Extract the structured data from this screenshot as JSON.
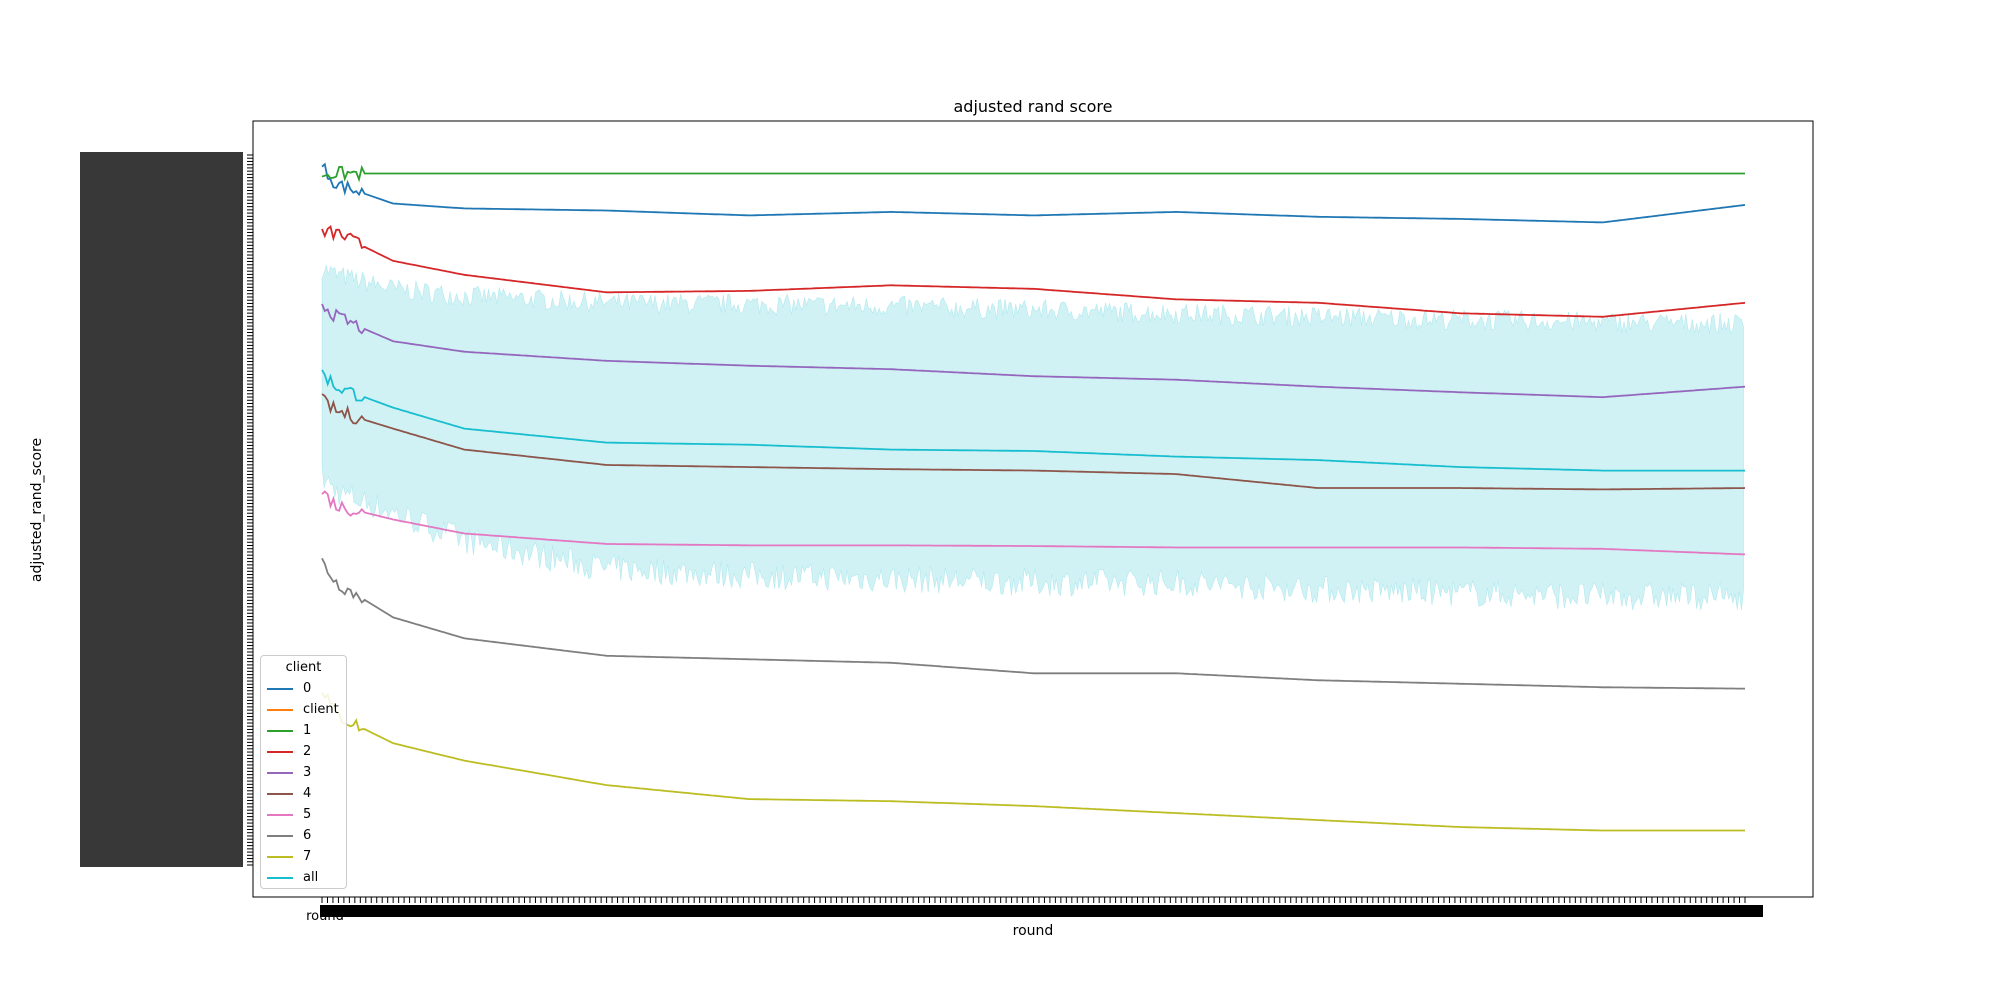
{
  "chart_data": {
    "type": "line",
    "title": "adjusted rand score",
    "xlabel": "round",
    "ylabel": "adjusted_rand_score",
    "x_first_tick_label": "round",
    "xlim": [
      0,
      1000
    ],
    "ylim": [
      0,
      1
    ],
    "grid": false,
    "legend": {
      "title": "client",
      "placement": "lower-left",
      "entries": [
        "0",
        "client",
        "1",
        "2",
        "3",
        "4",
        "5",
        "6",
        "7",
        "all"
      ]
    },
    "series": [
      {
        "name": "0",
        "color": "#1f77b4",
        "x": [
          0,
          10,
          50,
          100,
          200,
          300,
          400,
          500,
          600,
          700,
          800,
          900,
          1000
        ],
        "y": [
          0.995,
          0.97,
          0.942,
          0.935,
          0.932,
          0.925,
          0.93,
          0.925,
          0.93,
          0.923,
          0.92,
          0.915,
          0.94
        ]
      },
      {
        "name": "client",
        "color": "#ff7f0e",
        "x": [],
        "y": []
      },
      {
        "name": "1",
        "color": "#2ca02c",
        "x": [
          0,
          1000
        ],
        "y": [
          0.985,
          0.985
        ]
      },
      {
        "name": "2",
        "color": "#d62728",
        "x": [
          0,
          10,
          50,
          100,
          200,
          300,
          400,
          500,
          600,
          700,
          800,
          900,
          1000
        ],
        "y": [
          0.9,
          0.9,
          0.86,
          0.84,
          0.815,
          0.817,
          0.825,
          0.82,
          0.805,
          0.8,
          0.785,
          0.78,
          0.8
        ]
      },
      {
        "name": "3",
        "color": "#9467bd",
        "x": [
          0,
          10,
          50,
          100,
          200,
          300,
          400,
          500,
          600,
          700,
          800,
          900,
          1000
        ],
        "y": [
          0.8,
          0.78,
          0.745,
          0.73,
          0.717,
          0.71,
          0.705,
          0.695,
          0.69,
          0.68,
          0.672,
          0.665,
          0.68
        ]
      },
      {
        "name": "4",
        "color": "#8c564b",
        "x": [
          0,
          10,
          50,
          100,
          200,
          300,
          400,
          500,
          600,
          700,
          800,
          900,
          1000
        ],
        "y": [
          0.66,
          0.645,
          0.62,
          0.59,
          0.568,
          0.565,
          0.562,
          0.56,
          0.555,
          0.535,
          0.535,
          0.533,
          0.535
        ]
      },
      {
        "name": "5",
        "color": "#e377c2",
        "x": [
          0,
          10,
          50,
          100,
          200,
          300,
          400,
          500,
          600,
          700,
          800,
          900,
          1000
        ],
        "y": [
          0.53,
          0.51,
          0.49,
          0.47,
          0.455,
          0.453,
          0.453,
          0.452,
          0.45,
          0.45,
          0.45,
          0.448,
          0.44
        ]
      },
      {
        "name": "6",
        "color": "#7f7f7f",
        "x": [
          0,
          10,
          50,
          100,
          200,
          300,
          400,
          500,
          600,
          700,
          800,
          900,
          1000
        ],
        "y": [
          0.43,
          0.4,
          0.35,
          0.32,
          0.295,
          0.29,
          0.285,
          0.27,
          0.27,
          0.26,
          0.255,
          0.25,
          0.248
        ]
      },
      {
        "name": "7",
        "color": "#bcbd22",
        "x": [
          0,
          10,
          50,
          100,
          200,
          300,
          400,
          500,
          600,
          700,
          800,
          900,
          1000
        ],
        "y": [
          0.25,
          0.21,
          0.17,
          0.145,
          0.11,
          0.09,
          0.087,
          0.08,
          0.07,
          0.06,
          0.05,
          0.045,
          0.045
        ]
      },
      {
        "name": "all",
        "color": "#17becf",
        "x": [
          0,
          10,
          50,
          100,
          200,
          300,
          400,
          500,
          600,
          700,
          800,
          900,
          1000
        ],
        "y": [
          0.7,
          0.68,
          0.65,
          0.62,
          0.6,
          0.597,
          0.59,
          0.588,
          0.58,
          0.575,
          0.565,
          0.56,
          0.56
        ],
        "band_upper": [
          0.85,
          0.84,
          0.82,
          0.81,
          0.8,
          0.798,
          0.795,
          0.79,
          0.785,
          0.78,
          0.776,
          0.772,
          0.77
        ],
        "band_lower": [
          0.55,
          0.53,
          0.5,
          0.46,
          0.42,
          0.41,
          0.405,
          0.4,
          0.4,
          0.39,
          0.385,
          0.38,
          0.38
        ]
      }
    ]
  }
}
